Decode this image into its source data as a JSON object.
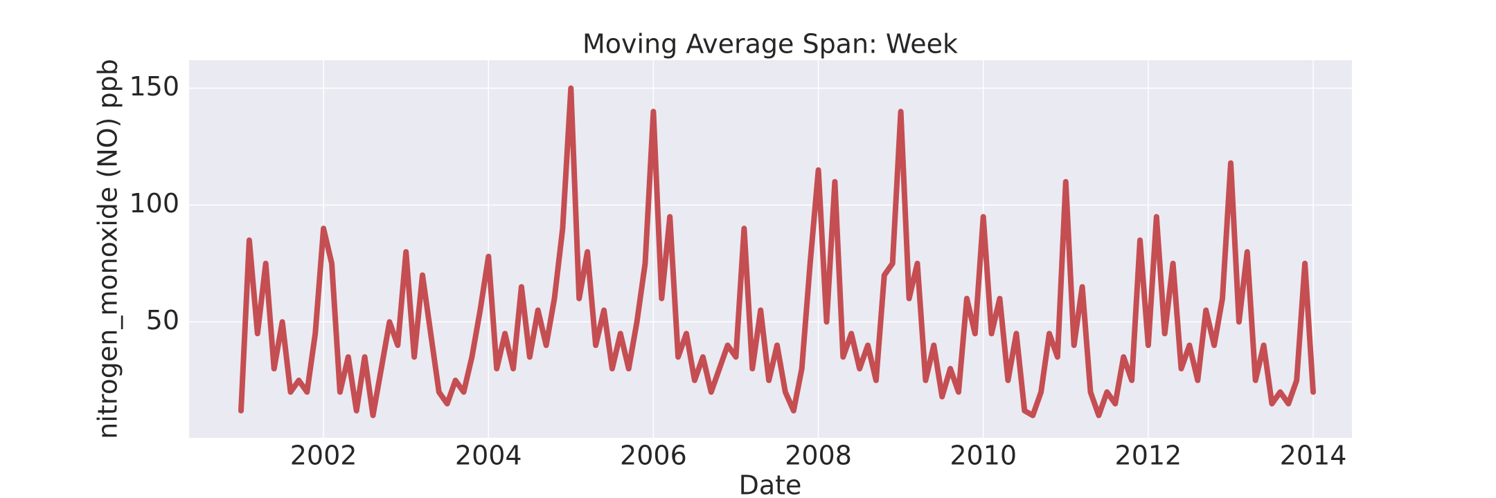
{
  "chart_data": {
    "type": "line",
    "title": "Moving Average Span: Week",
    "x_label": "Date",
    "y_label": "nitrogen_monoxide (NO) ppb",
    "x": [
      2001.0,
      2001.1,
      2001.2,
      2001.3,
      2001.4,
      2001.5,
      2001.6,
      2001.7,
      2001.8,
      2001.9,
      2002.0,
      2002.1,
      2002.2,
      2002.3,
      2002.4,
      2002.5,
      2002.6,
      2002.7,
      2002.8,
      2002.9,
      2003.0,
      2003.1,
      2003.2,
      2003.3,
      2003.4,
      2003.5,
      2003.6,
      2003.7,
      2003.8,
      2003.9,
      2004.0,
      2004.1,
      2004.2,
      2004.3,
      2004.4,
      2004.5,
      2004.6,
      2004.7,
      2004.8,
      2004.9,
      2005.0,
      2005.1,
      2005.2,
      2005.3,
      2005.4,
      2005.5,
      2005.6,
      2005.7,
      2005.8,
      2005.9,
      2006.0,
      2006.1,
      2006.2,
      2006.3,
      2006.4,
      2006.5,
      2006.6,
      2006.7,
      2006.8,
      2006.9,
      2007.0,
      2007.1,
      2007.2,
      2007.3,
      2007.4,
      2007.5,
      2007.6,
      2007.7,
      2007.8,
      2007.9,
      2008.0,
      2008.1,
      2008.2,
      2008.3,
      2008.4,
      2008.5,
      2008.6,
      2008.7,
      2008.8,
      2008.9,
      2009.0,
      2009.1,
      2009.2,
      2009.3,
      2009.4,
      2009.5,
      2009.6,
      2009.7,
      2009.8,
      2009.9,
      2010.0,
      2010.1,
      2010.2,
      2010.3,
      2010.4,
      2010.5,
      2010.6,
      2010.7,
      2010.8,
      2010.9,
      2011.0,
      2011.1,
      2011.2,
      2011.3,
      2011.4,
      2011.5,
      2011.6,
      2011.7,
      2011.8,
      2011.9,
      2012.0,
      2012.1,
      2012.2,
      2012.3,
      2012.4,
      2012.5,
      2012.6,
      2012.7,
      2012.8,
      2012.9,
      2013.0,
      2013.1,
      2013.2,
      2013.3,
      2013.4,
      2013.5,
      2013.6,
      2013.7,
      2013.8,
      2013.9,
      2014.0
    ],
    "series": [
      {
        "color": "#c44e52",
        "values": [
          12,
          85,
          45,
          75,
          30,
          50,
          20,
          25,
          20,
          45,
          90,
          75,
          20,
          35,
          12,
          35,
          10,
          30,
          50,
          40,
          80,
          35,
          70,
          45,
          20,
          15,
          25,
          20,
          35,
          55,
          78,
          30,
          45,
          30,
          65,
          35,
          55,
          40,
          60,
          90,
          150,
          60,
          80,
          40,
          55,
          30,
          45,
          30,
          50,
          75,
          140,
          60,
          95,
          35,
          45,
          25,
          35,
          20,
          30,
          40,
          35,
          90,
          30,
          55,
          25,
          40,
          20,
          12,
          30,
          75,
          115,
          50,
          110,
          35,
          45,
          30,
          40,
          25,
          70,
          75,
          140,
          60,
          75,
          25,
          40,
          18,
          30,
          20,
          60,
          45,
          95,
          45,
          60,
          25,
          45,
          12,
          10,
          20,
          45,
          35,
          110,
          40,
          65,
          20,
          10,
          20,
          15,
          35,
          25,
          85,
          40,
          95,
          45,
          75,
          30,
          40,
          25,
          55,
          40,
          60,
          118,
          50,
          80,
          25,
          40,
          15,
          20,
          15,
          25,
          75,
          20
        ]
      }
    ],
    "xlim": [
      2000.37,
      2014.47
    ],
    "xticks": [
      2002,
      2004,
      2006,
      2008,
      2010,
      2012,
      2014
    ],
    "ylim": [
      0.4,
      162
    ],
    "yticks": [
      50,
      100,
      150
    ],
    "grid": true
  }
}
